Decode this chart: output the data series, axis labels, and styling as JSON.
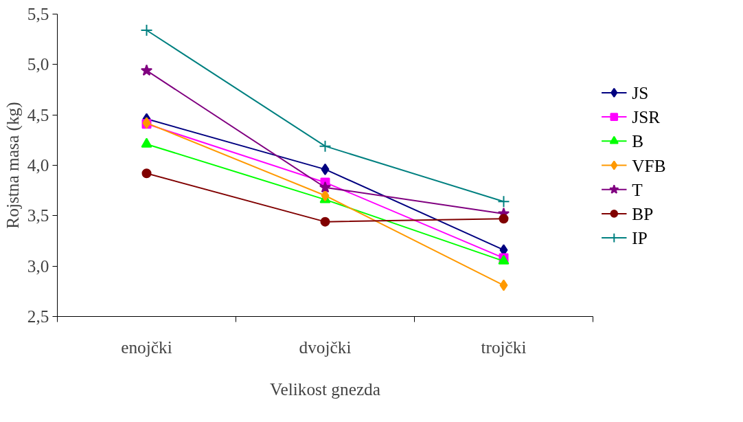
{
  "chart_data": {
    "type": "line",
    "xlabel": "Velikost gnezda",
    "ylabel": "Rojstna masa (kg)",
    "categories": [
      "enojčki",
      "dvojčki",
      "trojčki"
    ],
    "series": [
      {
        "name": "JS",
        "color": "#000080",
        "marker": "diamond",
        "values": [
          4.46,
          3.96,
          3.16
        ]
      },
      {
        "name": "JSR",
        "color": "#ff00ff",
        "marker": "square",
        "values": [
          4.41,
          3.83,
          3.08
        ]
      },
      {
        "name": "B",
        "color": "#00ff00",
        "marker": "triangle",
        "values": [
          4.21,
          3.66,
          3.05
        ]
      },
      {
        "name": "VFB",
        "color": "#ff9900",
        "marker": "diamond",
        "values": [
          4.42,
          3.7,
          2.81
        ]
      },
      {
        "name": "T",
        "color": "#800080",
        "marker": "star",
        "values": [
          4.94,
          3.78,
          3.52
        ]
      },
      {
        "name": "BP",
        "color": "#800000",
        "marker": "circle",
        "values": [
          3.92,
          3.44,
          3.47
        ]
      },
      {
        "name": "IP",
        "color": "#008080",
        "marker": "cross",
        "values": [
          5.34,
          4.19,
          3.64
        ]
      }
    ],
    "ylim": [
      2.5,
      5.5
    ],
    "yticks": [
      {
        "value": 2.5,
        "label": "2,5"
      },
      {
        "value": 3.0,
        "label": "3,0"
      },
      {
        "value": 3.5,
        "label": "3,5"
      },
      {
        "value": 4.0,
        "label": "4,0"
      },
      {
        "value": 4.5,
        "label": "4,5"
      },
      {
        "value": 5.0,
        "label": "5,0"
      },
      {
        "value": 5.5,
        "label": "5,5"
      }
    ],
    "grid": false,
    "legend": "right",
    "line_style": "solid"
  }
}
